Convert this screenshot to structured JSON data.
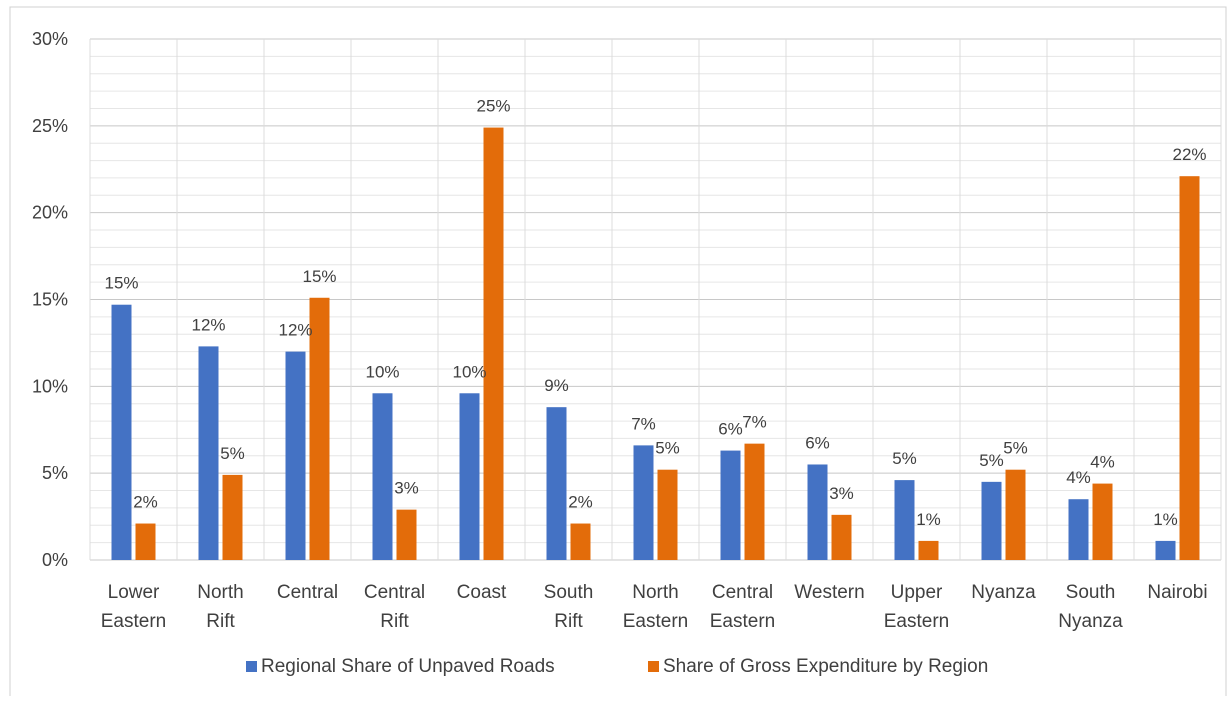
{
  "chart_data": {
    "type": "bar",
    "categories": [
      [
        "Lower",
        "Eastern"
      ],
      [
        "North",
        "Rift"
      ],
      [
        "Central"
      ],
      [
        "Central",
        "Rift"
      ],
      [
        "Coast"
      ],
      [
        "South",
        "Rift"
      ],
      [
        "North",
        "Eastern"
      ],
      [
        "Central",
        "Eastern"
      ],
      [
        "Western"
      ],
      [
        "Upper",
        "Eastern"
      ],
      [
        "Nyanza"
      ],
      [
        "South",
        "Nyanza"
      ],
      [
        "Nairobi"
      ]
    ],
    "series": [
      {
        "name": "Regional Share of Unpaved Roads",
        "color": "#4472C4",
        "values": [
          14.7,
          12.3,
          12.0,
          9.6,
          9.6,
          8.8,
          6.6,
          6.3,
          5.5,
          4.6,
          4.5,
          3.5,
          1.1
        ],
        "labels": [
          "15%",
          "12%",
          "12%",
          "10%",
          "10%",
          "9%",
          "7%",
          "6%",
          "6%",
          "5%",
          "5%",
          "4%",
          "1%"
        ]
      },
      {
        "name": "Share of Gross Expenditure by Region",
        "color": "#E36C0A",
        "values": [
          2.1,
          4.9,
          15.1,
          2.9,
          24.9,
          2.1,
          5.2,
          6.7,
          2.6,
          1.1,
          5.2,
          4.4,
          22.1
        ],
        "labels": [
          "2%",
          "5%",
          "15%",
          "3%",
          "25%",
          "2%",
          "5%",
          "7%",
          "3%",
          "1%",
          "5%",
          "4%",
          "22%"
        ]
      }
    ],
    "title": "",
    "xlabel": "",
    "ylabel": "",
    "ylim": [
      0,
      30
    ],
    "yticks": [
      "0%",
      "5%",
      "10%",
      "15%",
      "20%",
      "25%",
      "30%"
    ],
    "legend": "bottom",
    "grid": true
  }
}
